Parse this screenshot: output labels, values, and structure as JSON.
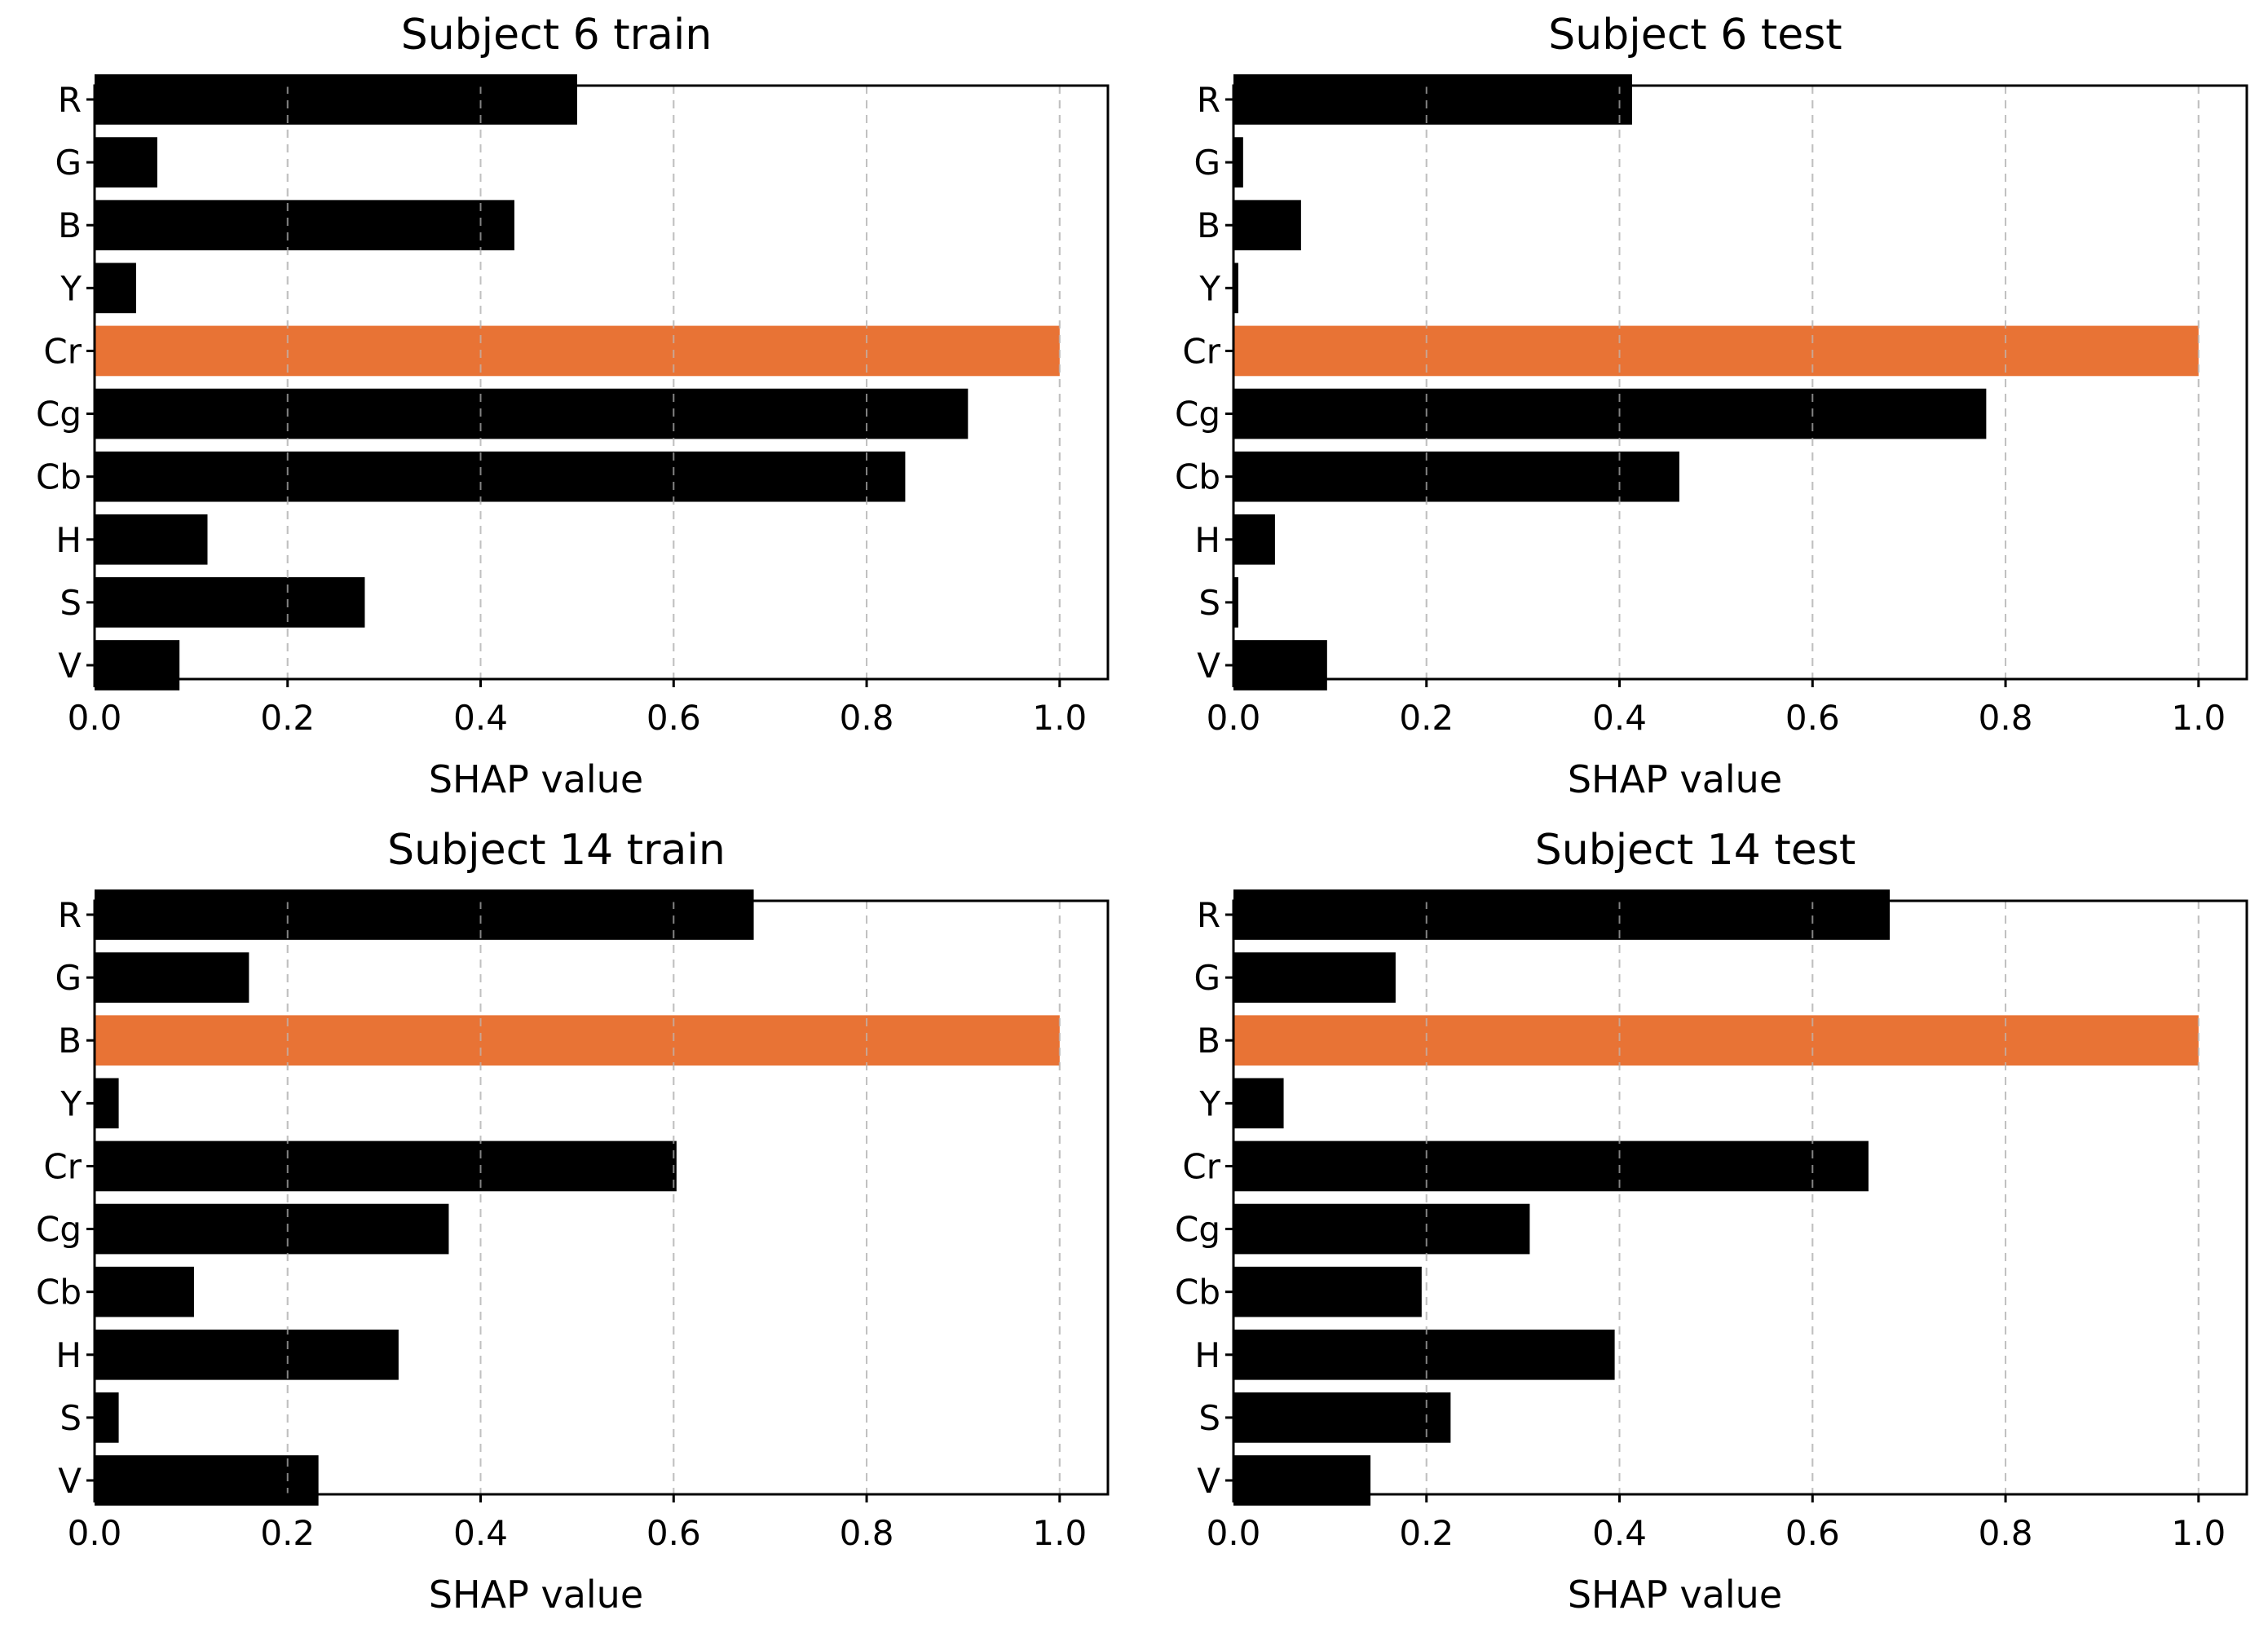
{
  "colors": {
    "bar": "#000000",
    "highlight": "#e87335",
    "grid": "#cccccc",
    "frame": "#000000"
  },
  "chart_data": [
    {
      "type": "bar",
      "orientation": "horizontal",
      "title": "Subject 6 train",
      "xlabel": "SHAP value",
      "ylabel": "",
      "xlim": [
        0,
        1.05
      ],
      "xticks": [
        "0.0",
        "0.2",
        "0.4",
        "0.6",
        "0.8",
        "1.0"
      ],
      "grid": "x-dashed",
      "categories": [
        "R",
        "G",
        "B",
        "Y",
        "Cr",
        "Cg",
        "Cb",
        "H",
        "S",
        "V"
      ],
      "values": [
        0.5,
        0.065,
        0.435,
        0.043,
        1.0,
        0.905,
        0.84,
        0.117,
        0.28,
        0.088
      ],
      "highlight": "Cr"
    },
    {
      "type": "bar",
      "orientation": "horizontal",
      "title": "Subject 6 test",
      "xlabel": "SHAP value",
      "ylabel": "",
      "xlim": [
        0,
        1.05
      ],
      "xticks": [
        "0.0",
        "0.2",
        "0.4",
        "0.6",
        "0.8",
        "1.0"
      ],
      "grid": "x-dashed",
      "categories": [
        "R",
        "G",
        "B",
        "Y",
        "Cr",
        "Cg",
        "Cb",
        "H",
        "S",
        "V"
      ],
      "values": [
        0.413,
        0.01,
        0.07,
        0.005,
        1.0,
        0.78,
        0.462,
        0.043,
        0.005,
        0.097
      ],
      "highlight": "Cr"
    },
    {
      "type": "bar",
      "orientation": "horizontal",
      "title": "Subject 14 train",
      "xlabel": "SHAP value",
      "ylabel": "",
      "xlim": [
        0,
        1.05
      ],
      "xticks": [
        "0.0",
        "0.2",
        "0.4",
        "0.6",
        "0.8",
        "1.0"
      ],
      "grid": "x-dashed",
      "categories": [
        "R",
        "G",
        "B",
        "Y",
        "Cr",
        "Cg",
        "Cb",
        "H",
        "S",
        "V"
      ],
      "values": [
        0.683,
        0.16,
        1.0,
        0.025,
        0.603,
        0.367,
        0.103,
        0.315,
        0.025,
        0.232
      ],
      "highlight": "B"
    },
    {
      "type": "bar",
      "orientation": "horizontal",
      "title": "Subject 14 test",
      "xlabel": "SHAP value",
      "ylabel": "",
      "xlim": [
        0,
        1.05
      ],
      "xticks": [
        "0.0",
        "0.2",
        "0.4",
        "0.6",
        "0.8",
        "1.0"
      ],
      "grid": "x-dashed",
      "categories": [
        "R",
        "G",
        "B",
        "Y",
        "Cr",
        "Cg",
        "Cb",
        "H",
        "S",
        "V"
      ],
      "values": [
        0.68,
        0.168,
        1.0,
        0.052,
        0.658,
        0.307,
        0.195,
        0.395,
        0.225,
        0.142
      ],
      "highlight": "B"
    }
  ]
}
